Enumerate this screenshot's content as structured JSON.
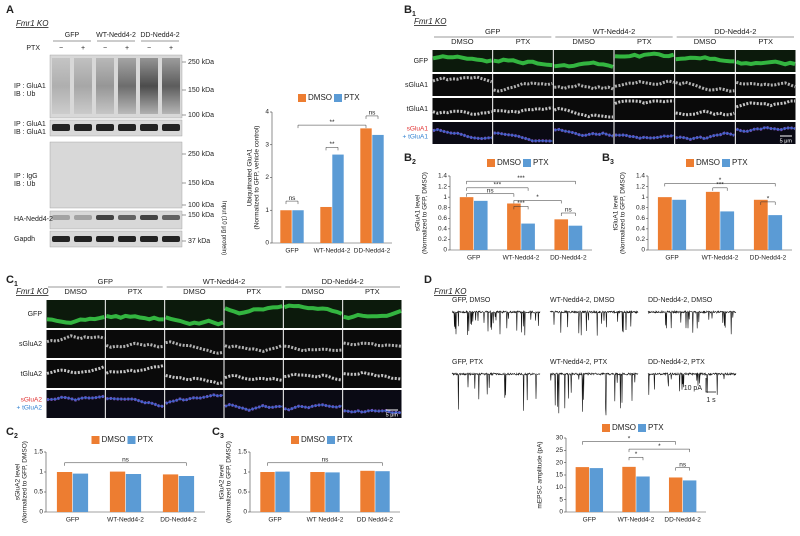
{
  "panels": {
    "a": {
      "letter": "A",
      "genotype": "Fmr1 KO",
      "groups": [
        "GFP",
        "WT-Nedd4-2",
        "DD-Nedd4-2"
      ],
      "treatment": "PTX",
      "signs": [
        "−",
        "+",
        "−",
        "+",
        "−",
        "+"
      ],
      "blot_rows": [
        [
          "IP : GluA1",
          "IB : Ub"
        ],
        [
          "IP : GluA1",
          "IB : GluA1"
        ],
        [
          "IP : IgG",
          "IB : Ub"
        ],
        [
          "HA-Nedd4-2"
        ],
        [
          "Gapdh"
        ]
      ],
      "markers": [
        "250 kDa",
        "150 kDa",
        "100 kDa",
        "250 kDa",
        "150 kDa",
        "100 kDa",
        "150 kDa",
        "37 kDa"
      ],
      "input_label": "Input (10 μg protein)"
    },
    "b1": {
      "letter": "B",
      "sub": "1",
      "genotype": "Fmr1 KO",
      "groups": [
        "GFP",
        "WT-Nedd4-2",
        "DD-Nedd4-2"
      ],
      "columns": [
        "DMSO",
        "PTX"
      ],
      "rows": [
        "GFP",
        "sGluA1",
        "tGluA1"
      ],
      "merge": [
        "sGluA1",
        "+ tGluA1"
      ],
      "scale": "5 μm"
    },
    "b2": {
      "letter": "B",
      "sub": "2"
    },
    "b3": {
      "letter": "B",
      "sub": "3"
    },
    "c1": {
      "letter": "C",
      "sub": "1",
      "genotype": "Fmr1 KO",
      "groups": [
        "GFP",
        "WT-Nedd4-2",
        "DD-Nedd4-2"
      ],
      "columns": [
        "DMSO",
        "PTX"
      ],
      "rows": [
        "GFP",
        "sGluA2",
        "tGluA2"
      ],
      "merge": [
        "sGluA2",
        "+ tGluA2"
      ],
      "scale": "5 μm"
    },
    "c2": {
      "letter": "C",
      "sub": "2"
    },
    "c3": {
      "letter": "C",
      "sub": "3"
    },
    "d": {
      "letter": "D",
      "genotype": "Fmr1 KO",
      "traces": [
        "GFP, DMSO",
        "WT-Nedd4-2, DMSO",
        "DD-Nedd4-2, DMSO",
        "GFP, PTX",
        "WT-Nedd4-2, PTX",
        "DD-Nedd4-2, PTX"
      ],
      "scale_y": "10 pA",
      "scale_x": "1 s"
    }
  },
  "chart_data": [
    {
      "type": "bar",
      "ylabel": [
        "Ubiquitinated GluA1",
        "(Normalized to GFP, vehicle control)"
      ],
      "categories": [
        "GFP",
        "WT-Nedd4-2",
        "DD-Nedd4-2"
      ],
      "series": [
        {
          "name": "DMSO",
          "color": "#ed7d31",
          "values": [
            1.0,
            1.1,
            3.5
          ]
        },
        {
          "name": "PTX",
          "color": "#5b9bd5",
          "values": [
            1.0,
            2.7,
            3.3
          ]
        }
      ],
      "ylim": [
        0,
        4
      ],
      "yticks": [
        0,
        1,
        2,
        3,
        4
      ],
      "significance": [
        "ns",
        "**",
        "**",
        "ns"
      ],
      "legend": "top"
    },
    {
      "type": "bar",
      "ylabel": [
        "sGluA1 level",
        "(Normalized to GFP, DMSO)"
      ],
      "categories": [
        "GFP",
        "WT-Nedd4-2",
        "DD-Nedd4-2"
      ],
      "series": [
        {
          "name": "DMSO",
          "color": "#ed7d31",
          "values": [
            1.0,
            0.88,
            0.58
          ]
        },
        {
          "name": "PTX",
          "color": "#5b9bd5",
          "values": [
            0.93,
            0.5,
            0.46
          ]
        }
      ],
      "ylim": [
        0,
        1.4
      ],
      "yticks": [
        0,
        0.2,
        0.4,
        0.6,
        0.8,
        1,
        1.2,
        1.4
      ],
      "significance": [
        "***",
        "***",
        "ns",
        "***",
        "*",
        "ns"
      ],
      "legend": "top"
    },
    {
      "type": "bar",
      "ylabel": [
        "tGluA1 level",
        "(Normalized to GFP, DMSO)"
      ],
      "categories": [
        "GFP",
        "WT-Nedd4-2",
        "DD-Nedd4-2"
      ],
      "series": [
        {
          "name": "DMSO",
          "color": "#ed7d31",
          "values": [
            1.0,
            1.1,
            0.95
          ]
        },
        {
          "name": "PTX",
          "color": "#5b9bd5",
          "values": [
            0.95,
            0.73,
            0.66
          ]
        }
      ],
      "ylim": [
        0,
        1.4
      ],
      "yticks": [
        0,
        0.2,
        0.4,
        0.6,
        0.8,
        1,
        1.2,
        1.4
      ],
      "significance": [
        "*",
        "***",
        "*"
      ],
      "legend": "top"
    },
    {
      "type": "bar",
      "ylabel": [
        "sGluA2 level",
        "(Normalized to GFP, DMSO)"
      ],
      "categories": [
        "GFP",
        "WT-Nedd4-2",
        "DD-Nedd4-2"
      ],
      "series": [
        {
          "name": "DMSO",
          "color": "#ed7d31",
          "values": [
            1.0,
            1.01,
            0.94
          ]
        },
        {
          "name": "PTX",
          "color": "#5b9bd5",
          "values": [
            0.96,
            0.95,
            0.9
          ]
        }
      ],
      "ylim": [
        0,
        1.5
      ],
      "yticks": [
        0,
        0.5,
        1,
        1.5
      ],
      "significance": [
        "ns"
      ],
      "legend": "top"
    },
    {
      "type": "bar",
      "ylabel": [
        "tGluA2 level",
        "(Normalized to GFP, DMSO)"
      ],
      "categories": [
        "GFP",
        "WT Nedd4-2",
        "DD Nedd4-2"
      ],
      "series": [
        {
          "name": "DMSO",
          "color": "#ed7d31",
          "values": [
            1.0,
            1.0,
            1.03
          ]
        },
        {
          "name": "PTX",
          "color": "#5b9bd5",
          "values": [
            1.01,
            0.99,
            1.02
          ]
        }
      ],
      "ylim": [
        0,
        1.5
      ],
      "yticks": [
        0,
        0.5,
        1,
        1.5
      ],
      "significance": [
        "ns"
      ],
      "legend": "top"
    },
    {
      "type": "bar",
      "ylabel": [
        "mEPSC amplitude (pA)"
      ],
      "categories": [
        "GFP",
        "WT-Nedd4-2",
        "DD-Nedd4-2"
      ],
      "series": [
        {
          "name": "DMSO",
          "color": "#ed7d31",
          "values": [
            18.2,
            18.3,
            14.0
          ]
        },
        {
          "name": "PTX",
          "color": "#5b9bd5",
          "values": [
            17.8,
            14.4,
            12.8
          ]
        }
      ],
      "ylim": [
        0,
        30
      ],
      "yticks": [
        0,
        5,
        10,
        15,
        20,
        25,
        30
      ],
      "significance": [
        "*",
        "*",
        "*",
        "ns"
      ],
      "legend": "top"
    }
  ]
}
